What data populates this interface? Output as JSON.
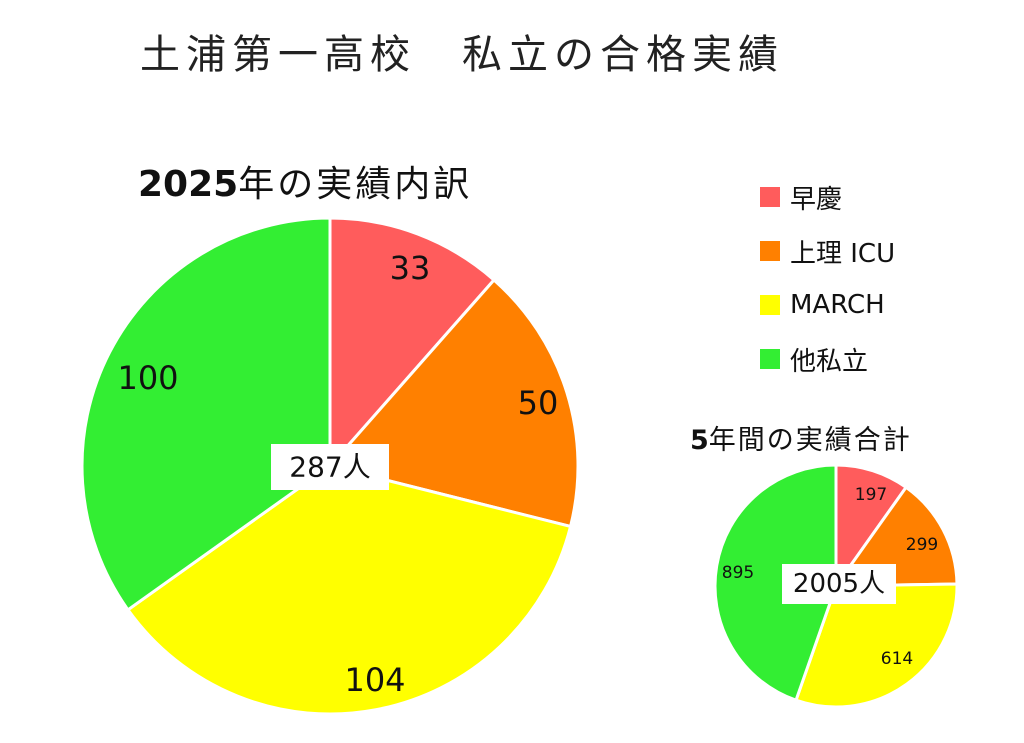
{
  "page": {
    "title": "土浦第一高校　私立の合格実績"
  },
  "legend": [
    {
      "label": "早慶",
      "color": "#ff5c5c"
    },
    {
      "label": "上理 ICU",
      "color": "#ff8000"
    },
    {
      "label": "MARCH",
      "color": "#ffff00"
    },
    {
      "label": "他私立",
      "color": "#33ee33"
    }
  ],
  "chart_data": [
    {
      "type": "pie",
      "title_number": "2025",
      "title_text": "年の実績内訳",
      "categories": [
        "早慶",
        "上理 ICU",
        "MARCH",
        "他私立"
      ],
      "values": [
        33,
        50,
        104,
        100
      ],
      "total_label": "287人"
    },
    {
      "type": "pie",
      "title_number": "5",
      "title_text": "年間の実績合計",
      "categories": [
        "早慶",
        "上理 ICU",
        "MARCH",
        "他私立"
      ],
      "values": [
        197,
        299,
        614,
        895
      ],
      "total_label": "2005人"
    }
  ]
}
